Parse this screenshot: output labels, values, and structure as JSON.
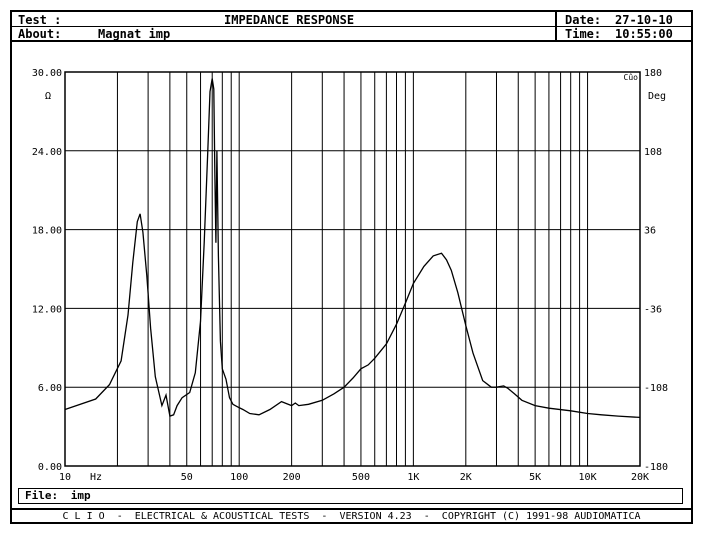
{
  "header": {
    "test_label": "Test :",
    "about_label": "About:",
    "about_value": "Magnat imp",
    "title": "IMPEDANCE RESPONSE",
    "date_label": "Date:",
    "date_value": "27-10-10",
    "time_label": "Time:",
    "time_value": "10:55:00"
  },
  "file": {
    "label": "File:",
    "value": "imp"
  },
  "footer": {
    "text": "C L I O  -  ELECTRICAL & ACOUSTICAL TESTS  -  VERSION 4.23  -  COPYRIGHT (C) 1991-98 AUDIOMATICA"
  },
  "chart_data": {
    "type": "line",
    "xscale": "log",
    "xlim": [
      10,
      20000
    ],
    "ylim": [
      0,
      30
    ],
    "y2lim": [
      -180,
      180
    ],
    "grid": true,
    "x_ticks": [
      {
        "value": 10,
        "label": "10"
      },
      {
        "value": 50,
        "label": "50"
      },
      {
        "value": 100,
        "label": "100"
      },
      {
        "value": 200,
        "label": "200"
      },
      {
        "value": 500,
        "label": "500"
      },
      {
        "value": 1000,
        "label": "1K"
      },
      {
        "value": 2000,
        "label": "2K"
      },
      {
        "value": 5000,
        "label": "5K"
      },
      {
        "value": 10000,
        "label": "10K"
      },
      {
        "value": 20000,
        "label": "20K"
      }
    ],
    "x_unit": "Hz",
    "y_ticks": [
      "0.00",
      "6.00",
      "12.00",
      "18.00",
      "24.00",
      "30.00"
    ],
    "y_unit": "Ω",
    "y2_ticks": [
      "-180",
      "-108",
      "-36",
      "36",
      "108",
      "180"
    ],
    "y2_unit": "Deg",
    "corner_label": "Cûo",
    "series": [
      {
        "x": [
          10,
          15,
          18,
          21,
          23,
          24.5,
          26,
          27,
          28,
          29.5,
          31,
          33,
          36,
          38,
          40,
          42,
          44,
          47,
          52,
          56,
          60,
          63,
          66,
          68,
          70,
          71.5,
          72.5,
          73.5,
          74.5,
          76,
          78,
          80,
          84,
          88,
          92,
          98,
          105,
          115,
          130,
          150,
          175,
          200,
          210,
          220,
          250,
          300,
          350,
          400,
          450,
          500,
          550,
          600,
          700,
          800,
          900,
          1000,
          1150,
          1300,
          1450,
          1550,
          1650,
          1800,
          2000,
          2200,
          2500,
          2800,
          3000,
          3300,
          3500,
          3800,
          4200,
          5000,
          6000,
          8000,
          10000,
          12000,
          15000,
          20000
        ],
        "y": [
          4.3,
          5.1,
          6.2,
          8.0,
          11.5,
          15.5,
          18.6,
          19.2,
          17.8,
          14.5,
          10.5,
          6.8,
          4.6,
          5.4,
          3.8,
          3.9,
          4.6,
          5.2,
          5.6,
          7.1,
          11.0,
          17.0,
          24.0,
          28.5,
          29.5,
          28.7,
          22.0,
          17.0,
          24.0,
          16.0,
          9.5,
          7.4,
          6.6,
          5.2,
          4.7,
          4.5,
          4.3,
          4.0,
          3.9,
          4.3,
          4.9,
          4.6,
          4.8,
          4.6,
          4.7,
          5.0,
          5.5,
          6.0,
          6.7,
          7.4,
          7.7,
          8.2,
          9.3,
          10.8,
          12.4,
          13.9,
          15.2,
          16.0,
          16.2,
          15.7,
          14.9,
          13.2,
          10.7,
          8.6,
          6.5,
          6.0,
          6.0,
          6.1,
          5.9,
          5.5,
          5.0,
          4.6,
          4.4,
          4.2,
          4.0,
          3.9,
          3.8,
          3.7
        ]
      }
    ]
  }
}
